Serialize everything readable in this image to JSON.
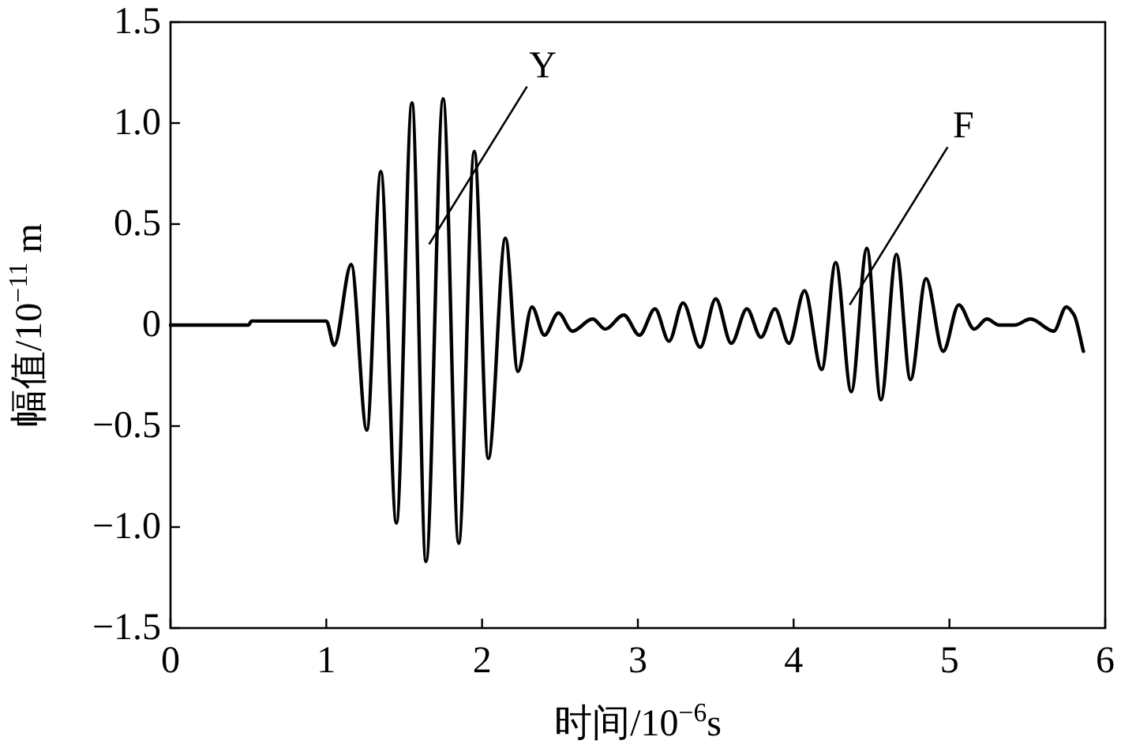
{
  "chart_data": {
    "type": "line",
    "xlabel": "时间/10$^{−6}$s",
    "ylabel": "幅值/10$^{−11}$ m",
    "xlim": [
      0,
      6
    ],
    "xticks": [
      0,
      1,
      2,
      3,
      4,
      5,
      6
    ],
    "ylim": [
      -1.5,
      1.5
    ],
    "yticks": [
      {
        "value": 1.5,
        "label": "1.5"
      },
      {
        "value": 1,
        "label": "1.0"
      },
      {
        "value": 0.5,
        "label": "0.5"
      },
      0,
      {
        "value": -0.5,
        "label": "−0.5"
      },
      {
        "value": -1,
        "label": "−1.0"
      },
      {
        "value": -1.5,
        "label": "−1.5"
      }
    ],
    "grid": false,
    "marker": "none",
    "line_style": "solid",
    "series": [
      {
        "color": "#000000",
        "x": [
          0,
          0.5,
          0.52,
          1.0,
          1.05,
          1.16,
          1.26,
          1.35,
          1.45,
          1.55,
          1.64,
          1.75,
          1.85,
          1.95,
          2.04,
          2.15,
          2.23,
          2.32,
          2.4,
          2.49,
          2.58,
          2.71,
          2.79,
          2.91,
          3.01,
          3.11,
          3.2,
          3.29,
          3.4,
          3.5,
          3.6,
          3.7,
          3.79,
          3.88,
          3.97,
          4.07,
          4.18,
          4.27,
          4.37,
          4.47,
          4.56,
          4.66,
          4.75,
          4.85,
          4.96,
          5.06,
          5.16,
          5.24,
          5.32,
          5.42,
          5.52,
          5.67,
          5.75,
          5.8,
          5.86
        ],
        "values": [
          0,
          0,
          0.02,
          0.02,
          -0.1,
          0.3,
          -0.52,
          0.76,
          -0.98,
          1.1,
          -1.17,
          1.12,
          -1.08,
          0.86,
          -0.66,
          0.43,
          -0.23,
          0.09,
          -0.05,
          0.06,
          -0.03,
          0.03,
          -0.02,
          0.05,
          -0.05,
          0.08,
          -0.08,
          0.11,
          -0.11,
          0.13,
          -0.09,
          0.08,
          -0.06,
          0.08,
          -0.09,
          0.17,
          -0.22,
          0.31,
          -0.33,
          0.38,
          -0.37,
          0.35,
          -0.27,
          0.23,
          -0.13,
          0.1,
          -0.02,
          0.03,
          0,
          0,
          0.03,
          -0.03,
          0.09,
          0.05,
          -0.13
        ]
      }
    ],
    "annotations": [
      {
        "text": "Y",
        "x": 1.66,
        "y": 0.4
      },
      {
        "text": "F",
        "x": 4.36,
        "y": 0.1
      }
    ]
  }
}
